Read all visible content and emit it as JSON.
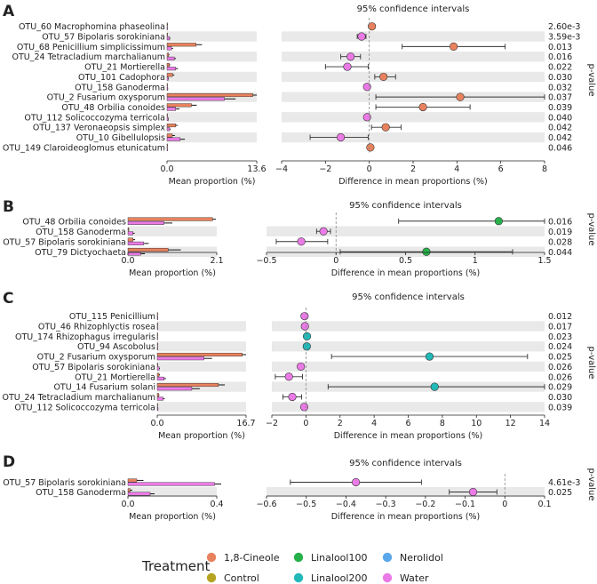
{
  "chart_data": [
    {
      "panel": "A",
      "type": "bar",
      "ci_title": "95% confidence intervals",
      "left_xlabel": "Mean proportion (%)",
      "right_xlabel": "Difference in mean proportions (%)",
      "pvalue_label": "p-value",
      "bar_xlim": [
        0,
        13.6
      ],
      "bar_ticks": [
        "0.0",
        "13.6"
      ],
      "diff_xlim": [
        -4,
        8
      ],
      "diff_ticks": [
        -4,
        -2,
        0,
        2,
        4,
        6,
        8
      ],
      "rows": [
        {
          "label": "OTU_60 Macrophomina phaseolina",
          "a": 0.08,
          "a_err": 0.05,
          "b": 0.03,
          "b_err": 0.02,
          "diff": 0.12,
          "lo": 0.12,
          "hi": 0.12,
          "group": "1,8-Cineole",
          "pvalue": "2.60e-3"
        },
        {
          "label": "OTU_57 Bipolaris sorokiniana",
          "a": 0.05,
          "a_err": 0.03,
          "b": 0.4,
          "b_err": 0.1,
          "diff": -0.35,
          "lo": -0.55,
          "hi": -0.15,
          "group": "Water",
          "pvalue": "3.59e-3"
        },
        {
          "label": "OTU_68 Penicillium simplicissimum",
          "a": 4.4,
          "a_err": 0.9,
          "b": 0.7,
          "b_err": 0.2,
          "diff": 3.85,
          "lo": 1.5,
          "hi": 6.2,
          "group": "1,8-Cineole",
          "pvalue": "0.013"
        },
        {
          "label": "OTU_24 Tetracladium marchalianum",
          "a": 0.25,
          "a_err": 0.1,
          "b": 1.1,
          "b_err": 0.25,
          "diff": -0.85,
          "lo": -1.3,
          "hi": -0.4,
          "group": "Water",
          "pvalue": "0.016"
        },
        {
          "label": "OTU_21 Mortierella",
          "a": 0.35,
          "a_err": 0.15,
          "b": 1.3,
          "b_err": 0.35,
          "diff": -1.0,
          "lo": -2.0,
          "hi": -0.05,
          "group": "Water",
          "pvalue": "0.022"
        },
        {
          "label": "OTU_101 Cadophora",
          "a": 0.85,
          "a_err": 0.25,
          "b": 0.2,
          "b_err": 0.08,
          "diff": 0.65,
          "lo": 0.25,
          "hi": 1.2,
          "group": "1,8-Cineole",
          "pvalue": "0.030"
        },
        {
          "label": "OTU_158 Ganoderma",
          "a": 0.02,
          "a_err": 0.01,
          "b": 0.12,
          "b_err": 0.05,
          "diff": -0.1,
          "lo": -0.15,
          "hi": -0.05,
          "group": "Water",
          "pvalue": "0.032"
        },
        {
          "label": "OTU_2 Fusarium oxysporum",
          "a": 13.0,
          "a_err": 0.6,
          "b": 8.7,
          "b_err": 1.7,
          "diff": 4.15,
          "lo": 0.3,
          "hi": 8.0,
          "group": "1,8-Cineole",
          "pvalue": "0.037"
        },
        {
          "label": "OTU_48 Orbilia conoides",
          "a": 3.7,
          "a_err": 0.8,
          "b": 1.3,
          "b_err": 0.6,
          "diff": 2.45,
          "lo": 0.3,
          "hi": 4.6,
          "group": "1,8-Cineole",
          "pvalue": "0.039"
        },
        {
          "label": "OTU_112 Solicoccozyma terricola",
          "a": 0.02,
          "a_err": 0.01,
          "b": 0.2,
          "b_err": 0.06,
          "diff": -0.1,
          "lo": -0.15,
          "hi": -0.05,
          "group": "Water",
          "pvalue": "0.040"
        },
        {
          "label": "OTU_137 Veronaeopsis simplex",
          "a": 1.3,
          "a_err": 0.3,
          "b": 0.4,
          "b_err": 0.15,
          "diff": 0.75,
          "lo": 0.1,
          "hi": 1.45,
          "group": "1,8-Cineole",
          "pvalue": "0.042"
        },
        {
          "label": "OTU_10 Gibellulopsis",
          "a": 0.8,
          "a_err": 0.4,
          "b": 2.0,
          "b_err": 0.7,
          "diff": -1.3,
          "lo": -2.7,
          "hi": -0.05,
          "group": "Water",
          "pvalue": "0.042"
        },
        {
          "label": "OTU_149 Claroideoglomus etunicatum",
          "a": 0.06,
          "a_err": 0.03,
          "b": 0.01,
          "b_err": 0.01,
          "diff": 0.05,
          "lo": 0.02,
          "hi": 0.08,
          "group": "1,8-Cineole",
          "pvalue": "0.046"
        }
      ]
    },
    {
      "panel": "B",
      "type": "bar",
      "ci_title": "95% confidence intervals",
      "left_xlabel": "Mean proportion (%)",
      "right_xlabel": "Difference in mean proportions (%)",
      "pvalue_label": "p-value",
      "bar_xlim": [
        0,
        2.1
      ],
      "bar_ticks": [
        "0.0",
        "2.1"
      ],
      "diff_xlim": [
        -0.5,
        1.5
      ],
      "diff_ticks": [
        -0.5,
        0.0,
        0.5,
        1.0,
        1.5
      ],
      "rows": [
        {
          "label": "OTU_48 Orbilia conoides",
          "a": 2.0,
          "a_err": 0.08,
          "b": 0.85,
          "b_err": 0.2,
          "diff": 1.17,
          "lo": 0.45,
          "hi": 1.88,
          "group": "Linalool100",
          "pvalue": "0.016"
        },
        {
          "label": "OTU_158 Ganoderma",
          "a": 0.02,
          "a_err": 0.01,
          "b": 0.12,
          "b_err": 0.04,
          "diff": -0.09,
          "lo": -0.14,
          "hi": -0.04,
          "group": "Water",
          "pvalue": "0.019"
        },
        {
          "label": "OTU_57 Bipolaris sorokiniana",
          "a": 0.12,
          "a_err": 0.05,
          "b": 0.37,
          "b_err": 0.12,
          "diff": -0.25,
          "lo": -0.43,
          "hi": -0.06,
          "group": "Water",
          "pvalue": "0.028"
        },
        {
          "label": "OTU_79 Dictyochaeta",
          "a": 0.95,
          "a_err": 0.3,
          "b": 0.3,
          "b_err": 0.1,
          "diff": 0.65,
          "lo": 0.03,
          "hi": 1.27,
          "group": "Linalool100",
          "pvalue": "0.044"
        }
      ]
    },
    {
      "panel": "C",
      "type": "bar",
      "ci_title": "95% confidence intervals",
      "left_xlabel": "Mean proportion (%)",
      "right_xlabel": "Difference in mean proportions (%)",
      "pvalue_label": "p-value",
      "bar_xlim": [
        0,
        16.7
      ],
      "bar_ticks": [
        "0.0",
        "16.7"
      ],
      "diff_xlim": [
        -2,
        14
      ],
      "diff_ticks": [
        -2,
        0,
        2,
        4,
        6,
        8,
        10,
        12,
        14
      ],
      "rows": [
        {
          "label": "OTU_115 Penicillium",
          "a": 0.02,
          "a_err": 0.01,
          "b": 0.12,
          "b_err": 0.03,
          "diff": -0.08,
          "lo": -0.12,
          "hi": -0.04,
          "group": "Water",
          "pvalue": "0.012"
        },
        {
          "label": "OTU_46 Rhizophlyctis rosea",
          "a": 0.01,
          "a_err": 0.01,
          "b": 0.07,
          "b_err": 0.02,
          "diff": -0.06,
          "lo": -0.09,
          "hi": -0.03,
          "group": "Water",
          "pvalue": "0.017"
        },
        {
          "label": "OTU_174 Rhizophagus irregularis",
          "a": 0.07,
          "a_err": 0.02,
          "b": 0.01,
          "b_err": 0.01,
          "diff": 0.06,
          "lo": 0.03,
          "hi": 0.09,
          "group": "Linalool200",
          "pvalue": "0.023"
        },
        {
          "label": "OTU_94 Ascobolus",
          "a": 0.06,
          "a_err": 0.02,
          "b": 0.01,
          "b_err": 0.01,
          "diff": 0.05,
          "lo": 0.02,
          "hi": 0.08,
          "group": "Linalool200",
          "pvalue": "0.024"
        },
        {
          "label": "OTU_2 Fusarium oxysporum",
          "a": 16.0,
          "a_err": 0.7,
          "b": 8.8,
          "b_err": 1.5,
          "diff": 7.25,
          "lo": 1.5,
          "hi": 13.0,
          "group": "Linalool200",
          "pvalue": "0.025"
        },
        {
          "label": "OTU_57 Bipolaris sorokiniana",
          "a": 0.1,
          "a_err": 0.04,
          "b": 0.38,
          "b_err": 0.1,
          "diff": -0.3,
          "lo": -0.45,
          "hi": -0.12,
          "group": "Water",
          "pvalue": "0.026"
        },
        {
          "label": "OTU_21 Mortierella",
          "a": 0.35,
          "a_err": 0.15,
          "b": 1.3,
          "b_err": 0.35,
          "diff": -1.0,
          "lo": -1.8,
          "hi": -0.2,
          "group": "Water",
          "pvalue": "0.026"
        },
        {
          "label": "OTU_14 Fusarium solani",
          "a": 11.5,
          "a_err": 1.2,
          "b": 6.5,
          "b_err": 1.5,
          "diff": 7.55,
          "lo": 1.3,
          "hi": 14.0,
          "group": "Linalool200",
          "pvalue": "0.029"
        },
        {
          "label": "OTU_24 Tetracladium marchalianum",
          "a": 0.3,
          "a_err": 0.1,
          "b": 1.1,
          "b_err": 0.3,
          "diff": -0.8,
          "lo": -1.35,
          "hi": -0.25,
          "group": "Water",
          "pvalue": "0.030"
        },
        {
          "label": "OTU_112 Solicoccozyma terricola",
          "a": 0.02,
          "a_err": 0.01,
          "b": 0.15,
          "b_err": 0.05,
          "diff": -0.1,
          "lo": -0.15,
          "hi": -0.05,
          "group": "Water",
          "pvalue": "0.039"
        }
      ]
    },
    {
      "panel": "D",
      "type": "bar",
      "ci_title": "95% confidence intervals",
      "left_xlabel": "Mean proportion (%)",
      "right_xlabel": "Difference in mean proportions (%)",
      "pvalue_label": "p-value",
      "bar_xlim": [
        0,
        0.4
      ],
      "bar_ticks": [
        "0.0",
        "0.4"
      ],
      "diff_xlim": [
        -0.6,
        0.1
      ],
      "diff_ticks": [
        -0.6,
        -0.5,
        -0.4,
        -0.3,
        -0.2,
        -0.1,
        0.0,
        0.1
      ],
      "rows": [
        {
          "label": "OTU_57 Bipolaris sorokiniana",
          "a": 0.04,
          "a_err": 0.03,
          "b": 0.39,
          "b_err": 0.03,
          "diff": -0.375,
          "lo": -0.54,
          "hi": -0.21,
          "group": "Water",
          "pvalue": "4.61e-3"
        },
        {
          "label": "OTU_158 Ganoderma",
          "a": 0.01,
          "a_err": 0.01,
          "b": 0.1,
          "b_err": 0.02,
          "diff": -0.08,
          "lo": -0.14,
          "hi": -0.02,
          "group": "Water",
          "pvalue": "0.025"
        }
      ]
    }
  ],
  "panels": [
    {
      "letter": "A"
    },
    {
      "letter": "B"
    },
    {
      "letter": "C"
    },
    {
      "letter": "D"
    }
  ],
  "legend": {
    "title": "Treatment",
    "items": [
      {
        "label": "1,8-Cineole",
        "color": "#e8825e"
      },
      {
        "label": "Linalool100",
        "color": "#27b04a"
      },
      {
        "label": "Nerolidol",
        "color": "#5aa8ea"
      },
      {
        "label": "Control",
        "color": "#b5a321"
      },
      {
        "label": "Linalool200",
        "color": "#21b8b8"
      },
      {
        "label": "Water",
        "color": "#ea7ae6"
      }
    ]
  },
  "colors": {
    "row_band": "#e9e9e9",
    "bar_a": "#e8825e",
    "bar_b": "#ea7ae6"
  }
}
